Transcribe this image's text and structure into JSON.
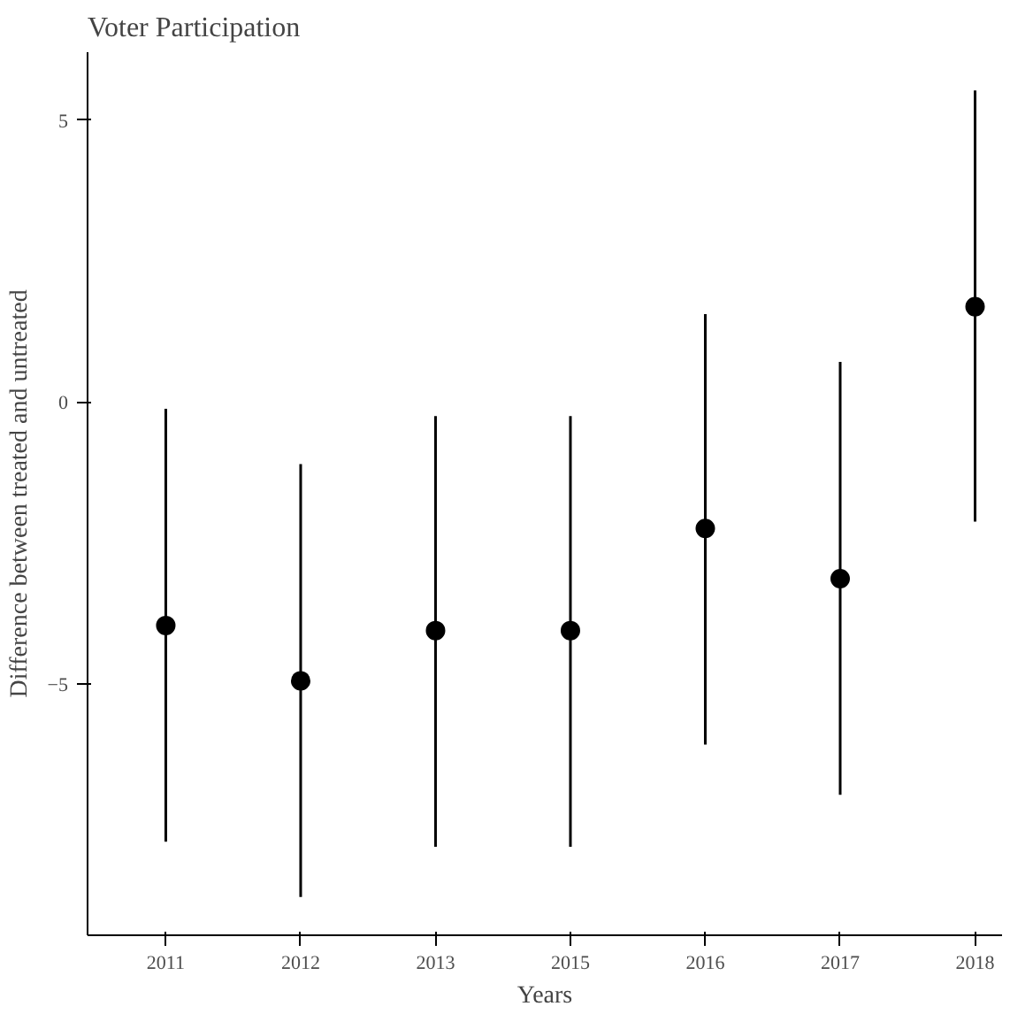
{
  "chart_data": {
    "type": "scatter",
    "title": "Voter Participation",
    "xlabel": "Years",
    "ylabel": "Difference between treated and untreated",
    "categories": [
      "2011",
      "2012",
      "2013",
      "2015",
      "2016",
      "2017",
      "2018"
    ],
    "values": [
      -3.96,
      -4.94,
      -4.05,
      -4.05,
      -2.24,
      -3.13,
      1.69
    ],
    "errors": [
      [
        -7.79,
        -0.12
      ],
      [
        -8.77,
        -1.1
      ],
      [
        -7.88,
        -0.25
      ],
      [
        -7.88,
        -0.25
      ],
      [
        -6.07,
        1.56
      ],
      [
        -6.96,
        0.71
      ],
      [
        -2.12,
        5.52
      ]
    ],
    "color": "#000000",
    "marker": "circle",
    "grid": false,
    "ylim": [
      -9.45,
      6.2
    ],
    "yticks": [
      -5,
      0,
      5
    ]
  }
}
